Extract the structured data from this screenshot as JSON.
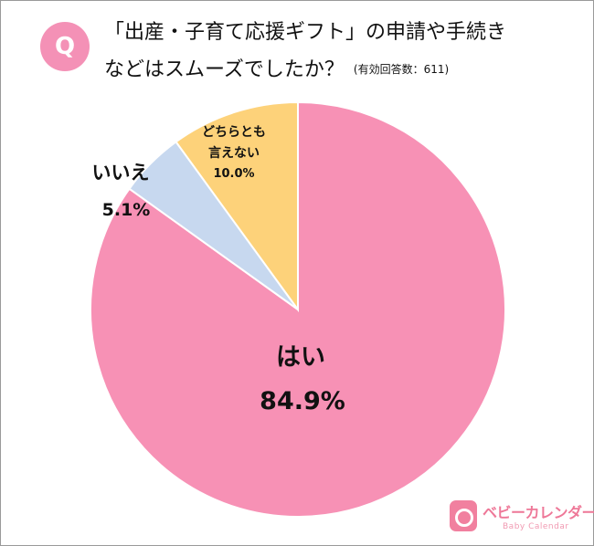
{
  "header": {
    "badge": "Q",
    "question_line1": "「出産・子育て応援ギフト」の申請や手続き",
    "question_line2": "などはスムーズでしたか？",
    "respondents": "(有効回答数：611)"
  },
  "chart_data": {
    "type": "pie",
    "start_angle_deg": 0,
    "direction": "clockwise",
    "slices": [
      {
        "label": "はい",
        "value": 84.9,
        "value_label": "84.9%",
        "color": "#f791b5"
      },
      {
        "label": "いいえ",
        "value": 5.1,
        "value_label": "5.1%",
        "color": "#c7d8ef"
      },
      {
        "label_lines": [
          "どちらとも",
          "言えない"
        ],
        "value": 10.0,
        "value_label": "10.0%",
        "color": "#fdd27a"
      }
    ]
  },
  "logo": {
    "name": "ベビーカレンダー",
    "sub": "Baby Calendar"
  }
}
